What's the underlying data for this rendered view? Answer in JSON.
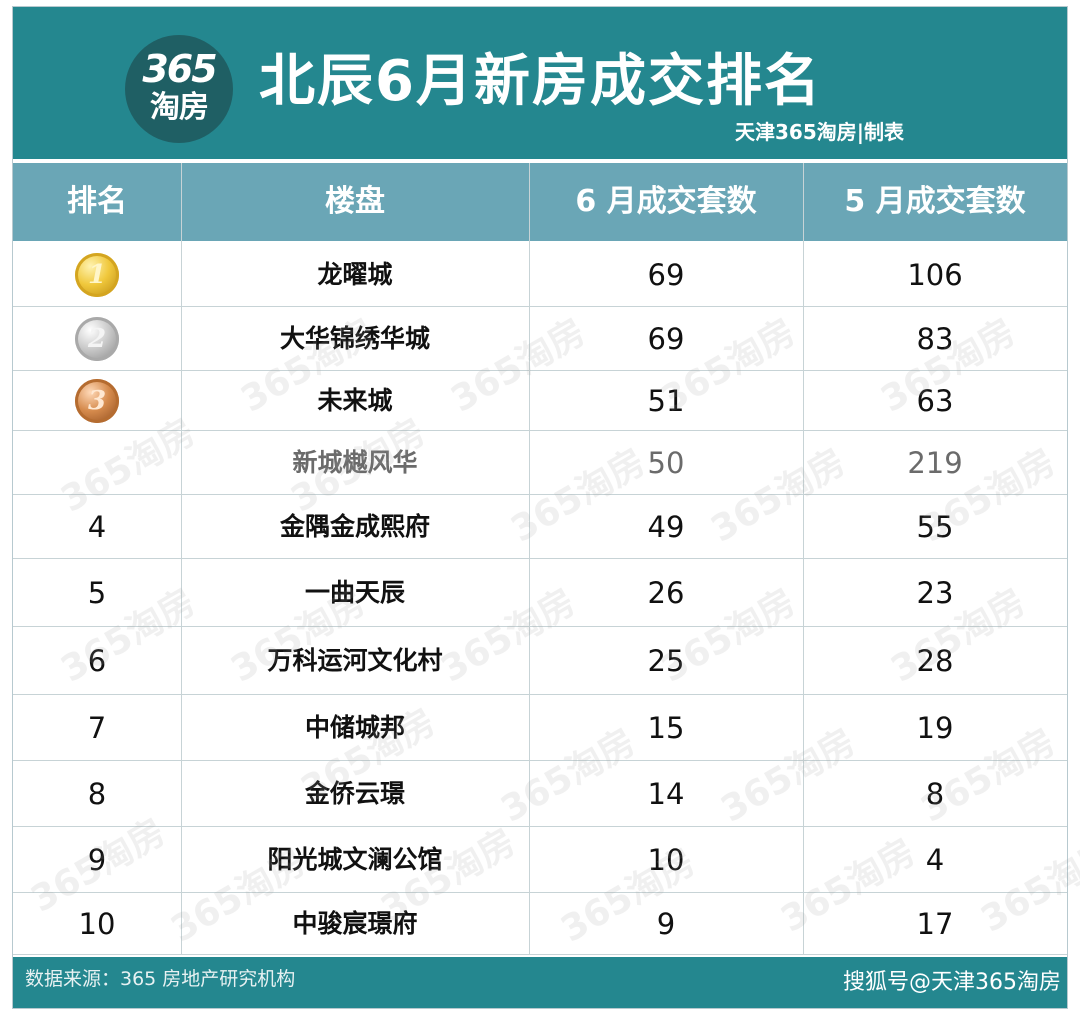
{
  "header": {
    "logo_top": "365",
    "logo_bottom": "淘房",
    "title": "北辰6月新房成交排名",
    "credit": "天津365淘房|制表"
  },
  "table": {
    "columns": [
      "排名",
      "楼盘",
      "6 月成交套数",
      "5 月成交套数"
    ],
    "rows": [
      {
        "rank": "1",
        "medal": "gold",
        "name": "龙曜城",
        "june": "69",
        "may": "106",
        "muted": false
      },
      {
        "rank": "2",
        "medal": "silver",
        "name": "大华锦绣华城",
        "june": "69",
        "may": "83",
        "muted": false
      },
      {
        "rank": "3",
        "medal": "bronze",
        "name": "未来城",
        "june": "51",
        "may": "63",
        "muted": false
      },
      {
        "rank": "",
        "medal": "",
        "name": "新城樾风华",
        "june": "50",
        "may": "219",
        "muted": true
      },
      {
        "rank": "4",
        "medal": "",
        "name": "金隅金成熙府",
        "june": "49",
        "may": "55",
        "muted": false
      },
      {
        "rank": "5",
        "medal": "",
        "name": "一曲天辰",
        "june": "26",
        "may": "23",
        "muted": false
      },
      {
        "rank": "6",
        "medal": "",
        "name": "万科运河文化村",
        "june": "25",
        "may": "28",
        "muted": false
      },
      {
        "rank": "7",
        "medal": "",
        "name": "中储城邦",
        "june": "15",
        "may": "19",
        "muted": false
      },
      {
        "rank": "8",
        "medal": "",
        "name": "金侨云璟",
        "june": "14",
        "may": "8",
        "muted": false
      },
      {
        "rank": "9",
        "medal": "",
        "name": "阳光城文澜公馆",
        "june": "10",
        "may": "4",
        "muted": false
      },
      {
        "rank": "10",
        "medal": "",
        "name": "中骏宸璟府",
        "june": "9",
        "may": "17",
        "muted": false
      }
    ]
  },
  "watermark": "365淘房",
  "footer": {
    "source": "数据来源：365 房地产研究机构",
    "sohu": "搜狐号@天津365淘房"
  },
  "colors": {
    "header_bg": "#24878f",
    "table_header_bg": "#6aa6b6",
    "gold": "#f0c83c",
    "silver": "#c9c9c9",
    "bronze": "#d58a4c"
  }
}
